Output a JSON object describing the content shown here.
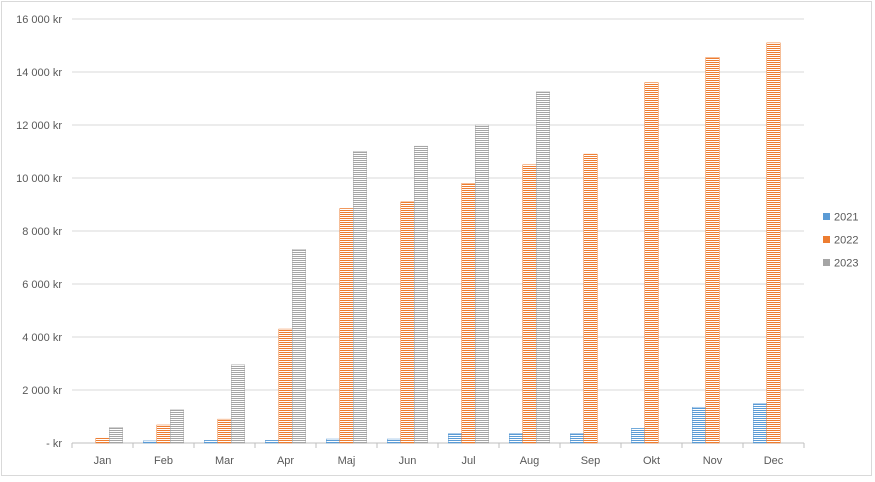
{
  "chart_data": {
    "type": "bar",
    "categories": [
      "Jan",
      "Feb",
      "Mar",
      "Apr",
      "Maj",
      "Jun",
      "Jul",
      "Aug",
      "Sep",
      "Okt",
      "Nov",
      "Dec"
    ],
    "series": [
      {
        "name": "2021",
        "color": "#5b9bd5",
        "values": [
          0,
          80,
          100,
          100,
          150,
          150,
          350,
          350,
          350,
          550,
          1350,
          1480
        ]
      },
      {
        "name": "2022",
        "color": "#ed7d31",
        "values": [
          180,
          680,
          900,
          4300,
          8850,
          9100,
          9800,
          10500,
          10900,
          13600,
          14550,
          15100
        ]
      },
      {
        "name": "2023",
        "color": "#a5a5a5",
        "values": [
          580,
          1250,
          2950,
          7300,
          11000,
          11200,
          12000,
          13250,
          null,
          null,
          null,
          null
        ]
      }
    ],
    "yticks": [
      "-  kr",
      "2 000 kr",
      "4 000 kr",
      "6 000 kr",
      "8 000 kr",
      "10 000 kr",
      "12 000 kr",
      "14 000 kr",
      "16 000 kr"
    ],
    "ylim": [
      0,
      16000
    ],
    "title": "",
    "xlabel": "",
    "ylabel": "",
    "grid": true,
    "legend_position": "right",
    "bar_fill": "horizontal-stripes"
  }
}
